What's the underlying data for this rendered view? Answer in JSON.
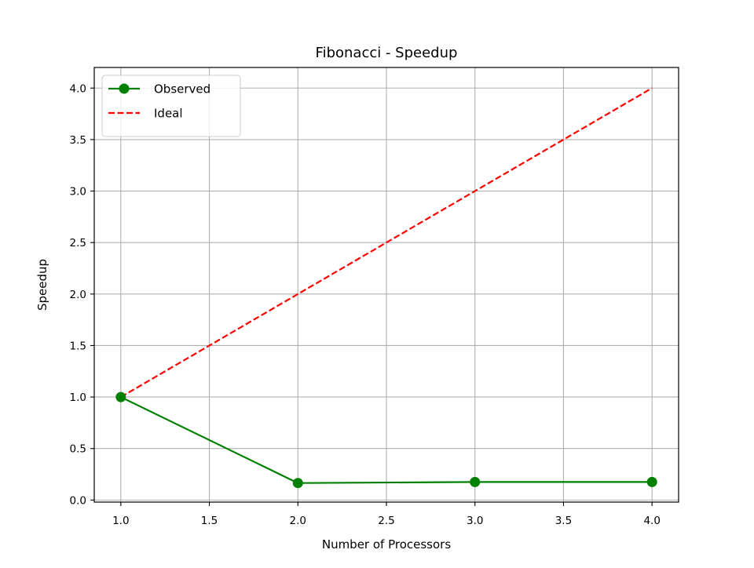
{
  "chart_data": {
    "type": "line",
    "title": "Fibonacci - Speedup",
    "xlabel": "Number of Processors",
    "ylabel": "Speedup",
    "xlim": [
      0.85,
      4.15
    ],
    "ylim": [
      -0.02,
      4.2
    ],
    "x_ticks": [
      1.0,
      1.5,
      2.0,
      2.5,
      3.0,
      3.5,
      4.0
    ],
    "x_tick_labels": [
      "1.0",
      "1.5",
      "2.0",
      "2.5",
      "3.0",
      "3.5",
      "4.0"
    ],
    "y_ticks": [
      0.0,
      0.5,
      1.0,
      1.5,
      2.0,
      2.5,
      3.0,
      3.5,
      4.0
    ],
    "y_tick_labels": [
      "0.0",
      "0.5",
      "1.0",
      "1.5",
      "2.0",
      "2.5",
      "3.0",
      "3.5",
      "4.0"
    ],
    "grid": true,
    "legend_position": "upper-left",
    "series": [
      {
        "name": "Observed",
        "x": [
          1,
          2,
          3,
          4
        ],
        "values": [
          1.0,
          0.165,
          0.175,
          0.175
        ],
        "color": "#008000",
        "style": "solid",
        "marker": "circle"
      },
      {
        "name": "Ideal",
        "x": [
          1,
          2,
          3,
          4
        ],
        "values": [
          1,
          2,
          3,
          4
        ],
        "color": "#ff0000",
        "style": "dashed",
        "marker": "none"
      }
    ]
  }
}
